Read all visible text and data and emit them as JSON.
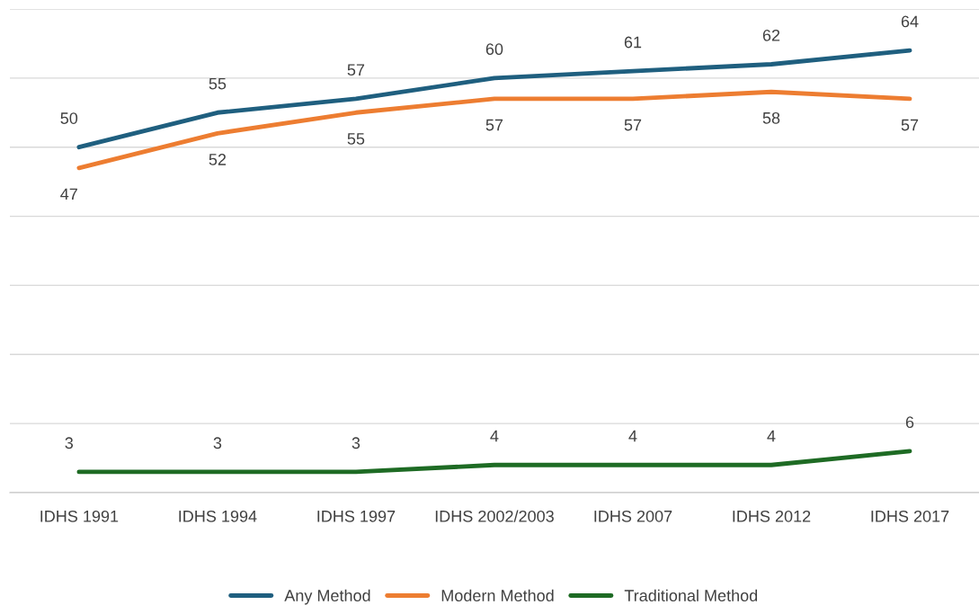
{
  "chart_data": {
    "type": "line",
    "categories": [
      "IDHS 1991",
      "IDHS 1994",
      "IDHS 1997",
      "IDHS 2002/2003",
      "IDHS 2007",
      "IDHS 2012",
      "IDHS 2017"
    ],
    "series": [
      {
        "name": "Any Method",
        "color": "#1f5f7f",
        "values": [
          50,
          55,
          57,
          60,
          61,
          62,
          64
        ]
      },
      {
        "name": "Modern Method",
        "color": "#ed7d31",
        "values": [
          47,
          52,
          55,
          57,
          57,
          58,
          57
        ]
      },
      {
        "name": "Traditional Method",
        "color": "#1e6b24",
        "values": [
          3,
          3,
          3,
          4,
          4,
          4,
          6
        ]
      }
    ],
    "ylim": [
      0,
      70
    ],
    "yticks": [
      {
        "value": 0,
        "label": null
      },
      {
        "value": 10,
        "label": null
      },
      {
        "value": 20,
        "label": null
      },
      {
        "value": 30,
        "label": null
      },
      {
        "value": 40,
        "label": null
      },
      {
        "value": 50,
        "label": null
      },
      {
        "value": 60,
        "label": null
      },
      {
        "value": 70,
        "label": null
      }
    ],
    "tick_labels": "x",
    "grid": "y",
    "data_labels": true,
    "legend": "bottom",
    "marker": "none",
    "line_style": "solid"
  }
}
